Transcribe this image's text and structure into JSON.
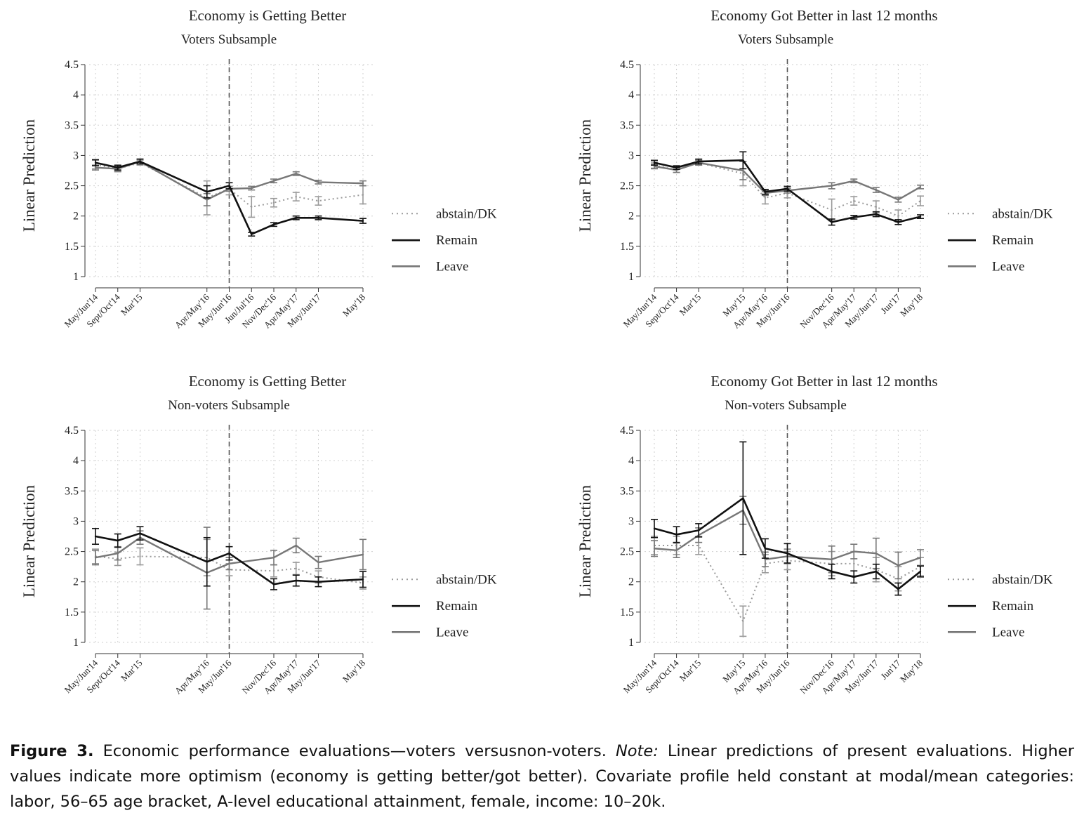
{
  "chart_data": [
    {
      "type": "line",
      "title": "Economy is Getting Better",
      "subtitle": "Voters Subsample",
      "ylabel": "Linear Prediction",
      "ylim": [
        1,
        4.5
      ],
      "yticks": [
        "1",
        "1.5",
        "2",
        "2.5",
        "3",
        "3.5",
        "4",
        "4.5"
      ],
      "grid": "dotted",
      "categories": [
        "May/Jun'14",
        "Sept/Oct'14",
        "Mar'15",
        "Apr/May'16",
        "May/Jun'16",
        "Jun/Jul'16",
        "Nov/Dec'16",
        "Apr/May'17",
        "May/Jun'17",
        "May'18"
      ],
      "x_positions": [
        0,
        1,
        2,
        5,
        6,
        7,
        8,
        9,
        10,
        12
      ],
      "referendum_marker": "May/Jun'16",
      "series": [
        {
          "name": "abstain/DK",
          "style": "dotted",
          "color": "#9a9a9a",
          "values": [
            2.85,
            2.78,
            2.88,
            2.3,
            2.45,
            2.15,
            2.22,
            2.32,
            2.25,
            2.35
          ],
          "ci": [
            [
              2.78,
              2.92
            ],
            [
              2.73,
              2.83
            ],
            [
              2.84,
              2.92
            ],
            [
              2.02,
              2.58
            ],
            [
              2.35,
              2.55
            ],
            [
              1.98,
              2.32
            ],
            [
              2.15,
              2.29
            ],
            [
              2.25,
              2.39
            ],
            [
              2.18,
              2.32
            ],
            [
              2.2,
              2.5
            ]
          ]
        },
        {
          "name": "Remain",
          "style": "solid",
          "color": "#111111",
          "values": [
            2.88,
            2.8,
            2.9,
            2.4,
            2.5,
            1.7,
            1.86,
            1.97,
            1.97,
            1.92
          ],
          "ci": [
            [
              2.83,
              2.93
            ],
            [
              2.76,
              2.84
            ],
            [
              2.86,
              2.94
            ],
            [
              2.3,
              2.5
            ],
            [
              2.45,
              2.55
            ],
            [
              1.67,
              1.73
            ],
            [
              1.83,
              1.89
            ],
            [
              1.94,
              2.0
            ],
            [
              1.94,
              2.0
            ],
            [
              1.88,
              1.96
            ]
          ]
        },
        {
          "name": "Leave",
          "style": "solid",
          "color": "#777777",
          "values": [
            2.8,
            2.78,
            2.9,
            2.27,
            2.45,
            2.46,
            2.58,
            2.7,
            2.56,
            2.54
          ],
          "ci": [
            [
              2.76,
              2.84
            ],
            [
              2.74,
              2.82
            ],
            [
              2.86,
              2.94
            ],
            [
              2.17,
              2.37
            ],
            [
              2.41,
              2.49
            ],
            [
              2.43,
              2.49
            ],
            [
              2.55,
              2.61
            ],
            [
              2.67,
              2.73
            ],
            [
              2.53,
              2.59
            ],
            [
              2.5,
              2.58
            ]
          ]
        }
      ],
      "legend": "right"
    },
    {
      "type": "line",
      "title": "Economy Got Better in last 12 months",
      "subtitle": "Voters Subsample",
      "ylabel": "Linear Prediction",
      "ylim": [
        1,
        4.5
      ],
      "yticks": [
        "1",
        "1.5",
        "2",
        "2.5",
        "3",
        "3.5",
        "4",
        "4.5"
      ],
      "grid": "dotted",
      "categories": [
        "May/Jun'14",
        "Sept/Oct'14",
        "Mar'15",
        "May'15",
        "Apr/May'16",
        "May/Jun'16",
        "Nov/Dec'16",
        "Apr/May'17",
        "May/Jun'17",
        "Jun'17",
        "May'18"
      ],
      "x_positions": [
        0,
        1,
        2,
        4,
        5,
        6,
        8,
        9,
        10,
        11,
        12
      ],
      "referendum_marker": "May/Jun'16",
      "series": [
        {
          "name": "abstain/DK",
          "style": "dotted",
          "color": "#9a9a9a",
          "values": [
            2.84,
            2.76,
            2.88,
            2.7,
            2.3,
            2.38,
            2.1,
            2.25,
            2.15,
            2.0,
            2.25
          ],
          "ci": [
            [
              2.79,
              2.89
            ],
            [
              2.72,
              2.8
            ],
            [
              2.84,
              2.92
            ],
            [
              2.5,
              2.9
            ],
            [
              2.2,
              2.4
            ],
            [
              2.3,
              2.46
            ],
            [
              1.92,
              2.28
            ],
            [
              2.18,
              2.32
            ],
            [
              2.05,
              2.25
            ],
            [
              1.9,
              2.1
            ],
            [
              2.17,
              2.33
            ]
          ]
        },
        {
          "name": "Remain",
          "style": "solid",
          "color": "#111111",
          "values": [
            2.88,
            2.8,
            2.9,
            2.92,
            2.4,
            2.45,
            1.9,
            1.98,
            2.03,
            1.9,
            1.99
          ],
          "ci": [
            [
              2.84,
              2.92
            ],
            [
              2.77,
              2.83
            ],
            [
              2.86,
              2.94
            ],
            [
              2.78,
              3.06
            ],
            [
              2.36,
              2.44
            ],
            [
              2.41,
              2.49
            ],
            [
              1.85,
              1.95
            ],
            [
              1.95,
              2.01
            ],
            [
              1.99,
              2.07
            ],
            [
              1.86,
              1.94
            ],
            [
              1.96,
              2.02
            ]
          ]
        },
        {
          "name": "Leave",
          "style": "solid",
          "color": "#777777",
          "values": [
            2.82,
            2.76,
            2.88,
            2.75,
            2.38,
            2.42,
            2.5,
            2.58,
            2.43,
            2.27,
            2.48
          ],
          "ci": [
            [
              2.78,
              2.86
            ],
            [
              2.72,
              2.8
            ],
            [
              2.84,
              2.92
            ],
            [
              2.6,
              2.9
            ],
            [
              2.34,
              2.42
            ],
            [
              2.38,
              2.46
            ],
            [
              2.45,
              2.55
            ],
            [
              2.55,
              2.61
            ],
            [
              2.39,
              2.47
            ],
            [
              2.23,
              2.31
            ],
            [
              2.45,
              2.51
            ]
          ]
        }
      ],
      "legend": "right"
    },
    {
      "type": "line",
      "title": "Economy is Getting Better",
      "subtitle": "Non-voters Subsample",
      "ylabel": "Linear Prediction",
      "ylim": [
        1,
        4.5
      ],
      "yticks": [
        "1",
        "1.5",
        "2",
        "2.5",
        "3",
        "3.5",
        "4",
        "4.5"
      ],
      "grid": "dotted",
      "categories": [
        "May/Jun'14",
        "Sept/Oct'14",
        "Mar'15",
        "Apr/May'16",
        "May/Jun'16",
        "Nov/Dec'16",
        "Apr/May'17",
        "May/Jun'17",
        "May'18"
      ],
      "x_positions": [
        0,
        1,
        2,
        5,
        6,
        8,
        9,
        10,
        12
      ],
      "referendum_marker": "May/Jun'16",
      "series": [
        {
          "name": "abstain/DK",
          "style": "dotted",
          "color": "#9a9a9a",
          "values": [
            2.42,
            2.38,
            2.42,
            2.4,
            2.2,
            2.18,
            2.22,
            2.08,
            1.98
          ],
          "ci": [
            [
              2.3,
              2.54
            ],
            [
              2.27,
              2.49
            ],
            [
              2.28,
              2.56
            ],
            [
              2.1,
              2.7
            ],
            [
              2.1,
              2.3
            ],
            [
              2.08,
              2.28
            ],
            [
              2.12,
              2.32
            ],
            [
              1.98,
              2.18
            ],
            [
              1.88,
              2.08
            ]
          ]
        },
        {
          "name": "Remain",
          "style": "solid",
          "color": "#111111",
          "values": [
            2.75,
            2.68,
            2.8,
            2.33,
            2.47,
            1.96,
            2.02,
            2.0,
            2.04
          ],
          "ci": [
            [
              2.62,
              2.88
            ],
            [
              2.57,
              2.79
            ],
            [
              2.69,
              2.91
            ],
            [
              1.93,
              2.73
            ],
            [
              2.36,
              2.58
            ],
            [
              1.87,
              2.05
            ],
            [
              1.93,
              2.11
            ],
            [
              1.92,
              2.08
            ],
            [
              1.91,
              2.17
            ]
          ]
        },
        {
          "name": "Leave",
          "style": "solid",
          "color": "#777777",
          "values": [
            2.4,
            2.47,
            2.73,
            2.15,
            2.3,
            2.4,
            2.6,
            2.32,
            2.45
          ],
          "ci": [
            [
              2.28,
              2.52
            ],
            [
              2.36,
              2.58
            ],
            [
              2.62,
              2.84
            ],
            [
              1.55,
              2.9
            ],
            [
              2.2,
              2.4
            ],
            [
              2.28,
              2.52
            ],
            [
              2.48,
              2.72
            ],
            [
              2.22,
              2.42
            ],
            [
              2.2,
              2.7
            ]
          ]
        }
      ],
      "legend": "right"
    },
    {
      "type": "line",
      "title": "Economy Got Better in last 12 months",
      "subtitle": "Non-voters Subsample",
      "ylabel": "Linear Prediction",
      "ylim": [
        1,
        4.5
      ],
      "yticks": [
        "1",
        "1.5",
        "2",
        "2.5",
        "3",
        "3.5",
        "4",
        "4.5"
      ],
      "grid": "dotted",
      "categories": [
        "May/Jun'14",
        "Sept/Oct'14",
        "Mar'15",
        "May'15",
        "Apr/May'16",
        "May/Jun'16",
        "Nov/Dec'16",
        "Apr/May'17",
        "May/Jun'17",
        "Jun'17",
        "May'18"
      ],
      "x_positions": [
        0,
        1,
        2,
        4,
        5,
        6,
        8,
        9,
        10,
        11,
        12
      ],
      "referendum_marker": "May/Jun'16",
      "series": [
        {
          "name": "abstain/DK",
          "style": "dotted",
          "color": "#9a9a9a",
          "values": [
            2.6,
            2.6,
            2.6,
            1.35,
            2.3,
            2.35,
            2.3,
            2.3,
            2.2,
            2.05,
            2.25
          ],
          "ci": [
            [
              2.45,
              2.75
            ],
            [
              2.45,
              2.75
            ],
            [
              2.45,
              2.75
            ],
            [
              1.1,
              1.6
            ],
            [
              2.15,
              2.45
            ],
            [
              2.2,
              2.5
            ],
            [
              2.1,
              2.5
            ],
            [
              2.1,
              2.5
            ],
            [
              2.0,
              2.4
            ],
            [
              1.85,
              2.25
            ],
            [
              2.1,
              2.4
            ]
          ]
        },
        {
          "name": "Remain",
          "style": "solid",
          "color": "#111111",
          "values": [
            2.88,
            2.78,
            2.85,
            3.38,
            2.55,
            2.47,
            2.17,
            2.08,
            2.17,
            1.88,
            2.17
          ],
          "ci": [
            [
              2.73,
              3.03
            ],
            [
              2.65,
              2.91
            ],
            [
              2.74,
              2.96
            ],
            [
              2.45,
              4.31
            ],
            [
              2.39,
              2.71
            ],
            [
              2.31,
              2.63
            ],
            [
              2.05,
              2.29
            ],
            [
              1.98,
              2.18
            ],
            [
              2.05,
              2.29
            ],
            [
              1.78,
              1.98
            ],
            [
              2.08,
              2.26
            ]
          ]
        },
        {
          "name": "Leave",
          "style": "solid",
          "color": "#777777",
          "values": [
            2.55,
            2.52,
            2.77,
            3.18,
            2.37,
            2.42,
            2.37,
            2.5,
            2.47,
            2.27,
            2.4
          ],
          "ci": [
            [
              2.42,
              2.68
            ],
            [
              2.4,
              2.64
            ],
            [
              2.65,
              2.89
            ],
            [
              2.95,
              3.41
            ],
            [
              2.25,
              2.49
            ],
            [
              2.3,
              2.54
            ],
            [
              2.15,
              2.59
            ],
            [
              2.38,
              2.62
            ],
            [
              2.22,
              2.72
            ],
            [
              2.05,
              2.49
            ],
            [
              2.27,
              2.53
            ]
          ]
        }
      ],
      "legend": "right"
    }
  ],
  "caption": {
    "label": "Figure 3.",
    "text": " Economic performance evaluations—voters versusnon-voters. ",
    "note_label": "Note:",
    "note_text": " Linear predictions of present evaluations. Higher values indicate more optimism (economy is getting better/got better). Covariate profile held constant at modal/mean categories: labor, 56–65 age bracket, A-level educational attainment, female, income: 10–20k."
  }
}
